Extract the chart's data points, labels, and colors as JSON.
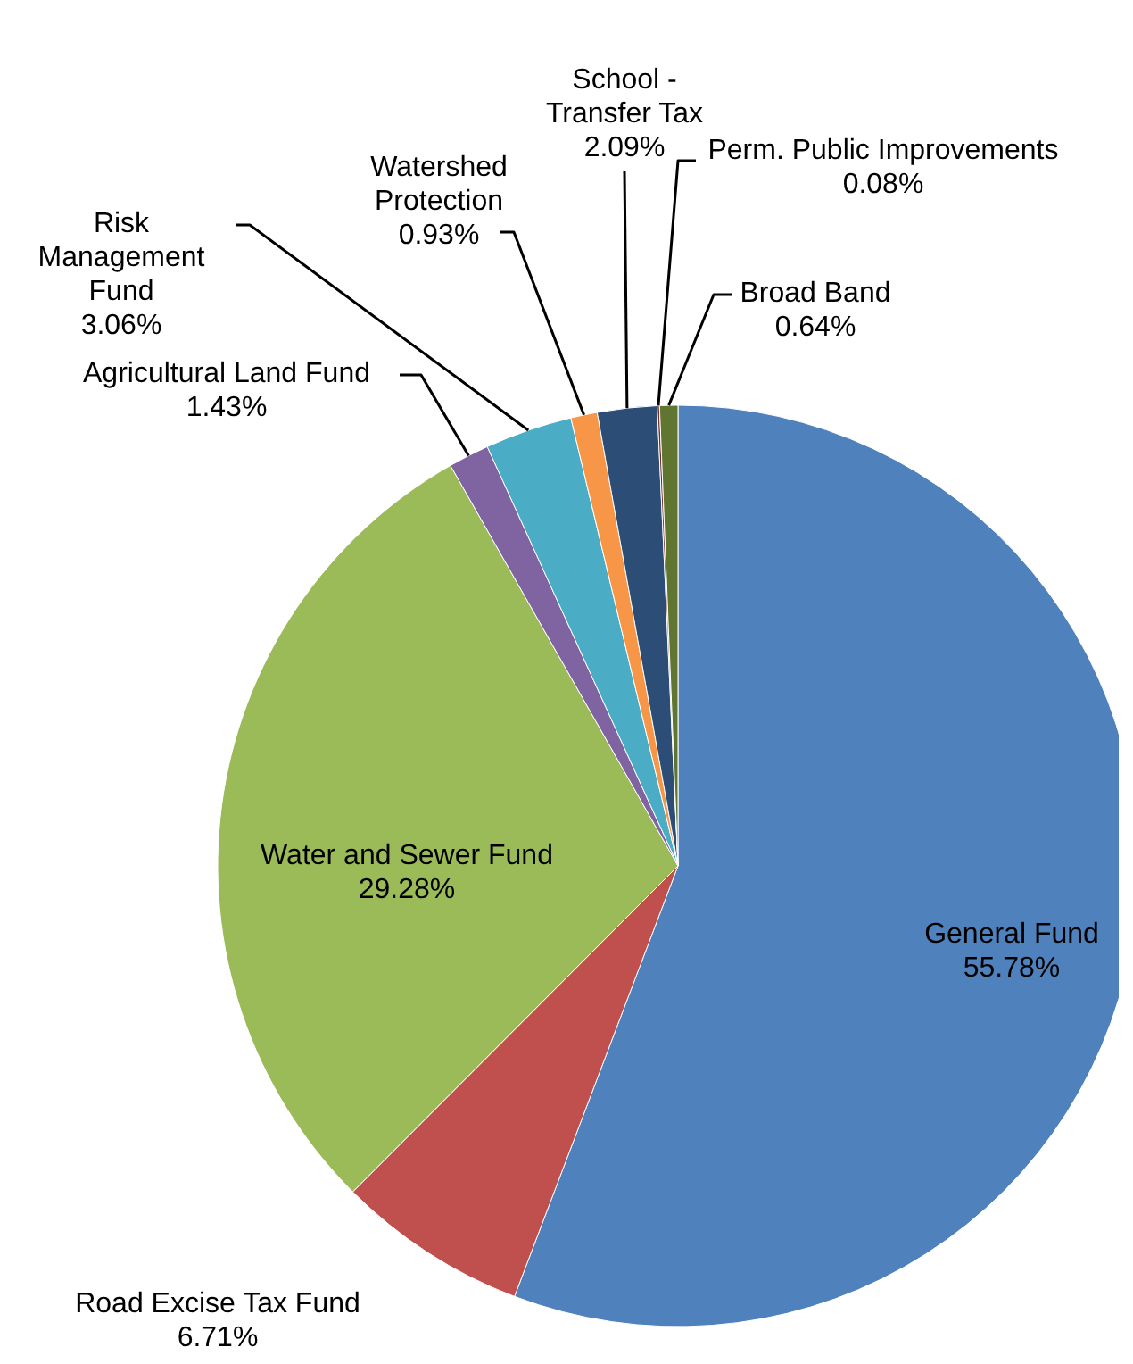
{
  "chart_data": {
    "type": "pie",
    "categories": [
      "General Fund",
      "Road Excise Tax Fund",
      "Water and Sewer Fund",
      "Agricultural Land Fund",
      "Risk Management Fund",
      "Watershed Protection",
      "School - Transfer Tax",
      "Perm. Public Improvements",
      "Broad Band"
    ],
    "values": [
      55.78,
      6.71,
      29.28,
      1.43,
      3.06,
      0.93,
      2.09,
      0.08,
      0.64
    ],
    "colors": [
      "#4f81bd",
      "#c0504d",
      "#9bbb59",
      "#8064a2",
      "#4bacc6",
      "#f79646",
      "#2c4d75",
      "#772c2a",
      "#5f7530"
    ],
    "value_labels": [
      "55.78%",
      "6.71%",
      "29.28%",
      "1.43%",
      "3.06%",
      "0.93%",
      "2.09%",
      "0.08%",
      "0.64%"
    ]
  }
}
